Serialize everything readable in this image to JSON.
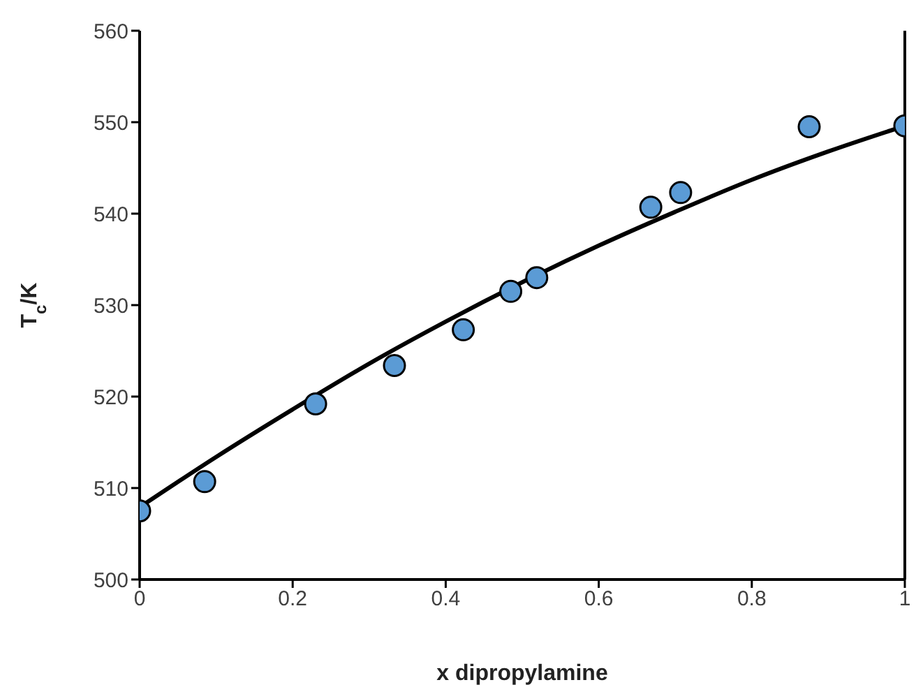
{
  "chart_data": {
    "type": "scatter",
    "xlabel": "x dipropylamine",
    "ylabel": "T$_{c}$/K",
    "xlim": [
      0,
      1
    ],
    "xticks": [
      0,
      0.2,
      0.4,
      0.6,
      0.8,
      1
    ],
    "ylim": [
      500,
      560
    ],
    "yticks": [
      500,
      510,
      520,
      530,
      540,
      550,
      560
    ],
    "grid": false,
    "legend": false,
    "marker": "circle",
    "series": [
      {
        "color": "#5b9bd5",
        "x": [
          0,
          0.085,
          0.23,
          0.333,
          0.423,
          0.485,
          0.519,
          0.668,
          0.707,
          0.875,
          1
        ],
        "values": [
          507.5,
          510.7,
          519.2,
          523.4,
          527.3,
          531.5,
          533.0,
          540.7,
          542.3,
          549.5,
          549.6
        ]
      },
      {
        "type": "line",
        "color": "#000000",
        "line_style": "solid",
        "marker": "none",
        "x": [
          0,
          0.1,
          0.2,
          0.3,
          0.4,
          0.5,
          0.6,
          0.7,
          0.8,
          0.9,
          1
        ],
        "values": [
          507.9,
          513.4,
          518.6,
          523.6,
          528.2,
          532.5,
          536.5,
          540.2,
          543.7,
          546.8,
          549.6
        ]
      }
    ]
  }
}
